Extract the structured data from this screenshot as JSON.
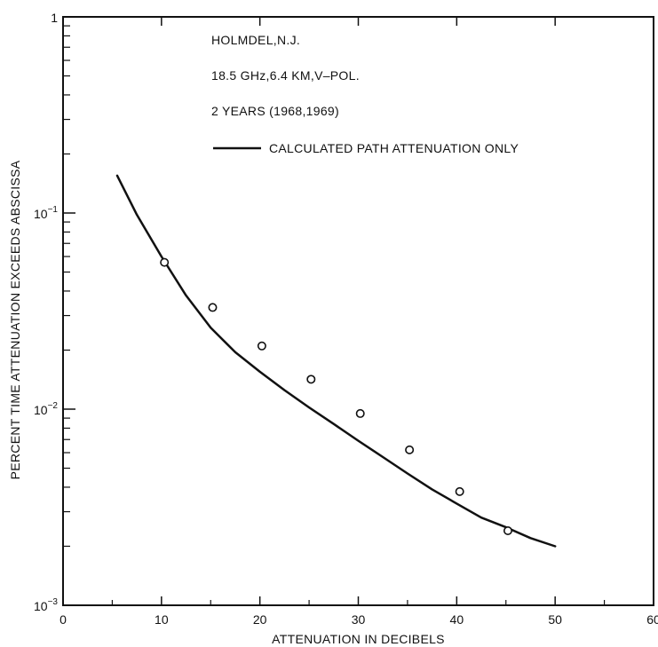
{
  "chart_data": {
    "type": "line",
    "title": "",
    "xlabel": "ATTENUATION IN DECIBELS",
    "ylabel": "PERCENT TIME ATTENUATION EXCEEDS ABSCISSA",
    "x_scale": "linear",
    "y_scale": "log",
    "xlim": [
      0,
      60
    ],
    "ylim": [
      0.001,
      1
    ],
    "x_ticks": [
      0,
      10,
      20,
      30,
      40,
      50,
      60
    ],
    "x_tick_labels": [
      "0",
      "10",
      "20",
      "30",
      "40",
      "50",
      "60"
    ],
    "y_ticks": [
      0.001,
      0.01,
      0.1,
      1
    ],
    "y_tick_labels": [
      {
        "base": "10",
        "exp": "−3"
      },
      {
        "base": "10",
        "exp": "−2"
      },
      {
        "base": "10",
        "exp": "−1"
      },
      {
        "base": "1",
        "exp": ""
      }
    ],
    "grid": false,
    "annotations": [
      "HOLMDEL,N.J.",
      "18.5 GHz,6.4 KM,V–POL.",
      "2 YEARS (1968,1969)"
    ],
    "legend": {
      "placement": "top-right",
      "entries": [
        {
          "label": "CALCULATED PATH ATTENUATION ONLY",
          "style": "solid-line"
        }
      ]
    },
    "series": [
      {
        "name": "CALCULATED PATH ATTENUATION ONLY",
        "style": "line",
        "color": "#111111",
        "x": [
          5.5,
          7.5,
          10,
          12.5,
          15,
          17.5,
          20,
          22.5,
          25,
          27.5,
          30,
          32.5,
          35,
          37.5,
          40,
          42.5,
          45,
          47.5,
          50
        ],
        "y": [
          0.155,
          0.098,
          0.06,
          0.038,
          0.026,
          0.0195,
          0.0155,
          0.0125,
          0.0102,
          0.0084,
          0.0069,
          0.0057,
          0.0047,
          0.0039,
          0.0033,
          0.0028,
          0.0025,
          0.0022,
          0.002
        ]
      },
      {
        "style": "markers",
        "marker": "open-circle",
        "x": [
          10.3,
          15.2,
          20.2,
          25.2,
          30.2,
          35.2,
          40.3,
          45.2
        ],
        "y": [
          0.056,
          0.033,
          0.021,
          0.0142,
          0.0095,
          0.0062,
          0.0038,
          0.0024
        ]
      }
    ]
  }
}
